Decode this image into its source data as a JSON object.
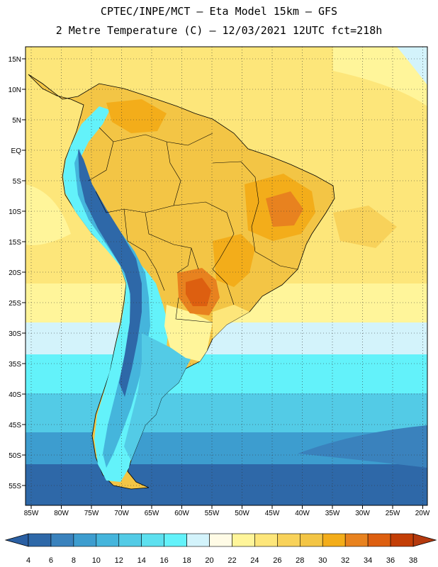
{
  "title_line1": "CPTEC/INPE/MCT –  Eta Model 15km – GFS",
  "title_line2": "2 Metre Temperature (C) – 12/03/2021 12UTC fct=218h",
  "lat_labels": [
    "15N",
    "10N",
    "5N",
    "EQ",
    "5S",
    "10S",
    "15S",
    "20S",
    "25S",
    "30S",
    "35S",
    "40S",
    "45S",
    "50S",
    "55S"
  ],
  "lon_labels": [
    "85W",
    "80W",
    "75W",
    "70W",
    "65W",
    "60W",
    "55W",
    "50W",
    "45W",
    "40W",
    "35W",
    "30W",
    "25W",
    "20W"
  ],
  "colorbar": {
    "labels": [
      "4",
      "6",
      "8",
      "10",
      "12",
      "14",
      "16",
      "18",
      "20",
      "22",
      "24",
      "26",
      "28",
      "30",
      "32",
      "34",
      "36",
      "38"
    ],
    "colors": [
      "#2e68a8",
      "#3a82bd",
      "#3d9dcf",
      "#45b5dc",
      "#53cbe6",
      "#5de0ef",
      "#63f2fa",
      "#d3f3fb",
      "#fffbe6",
      "#fff59a",
      "#fde67a",
      "#f8d25a",
      "#f3c545",
      "#f3ad1a",
      "#e8821f",
      "#dd5f10",
      "#c33e06"
    ],
    "low_color": "#2a5fa3",
    "high_color": "#b53a0e"
  }
}
